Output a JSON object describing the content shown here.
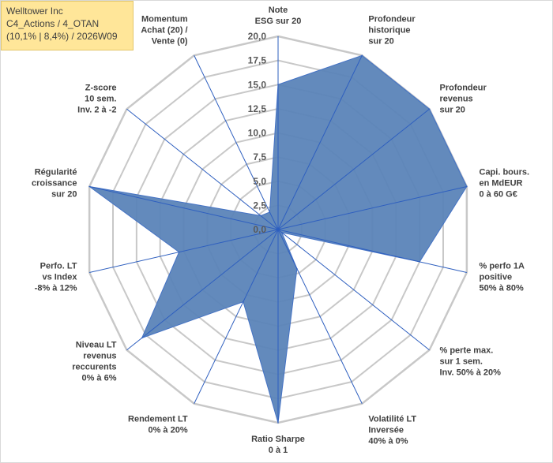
{
  "header": {
    "line1": "Welltower Inc",
    "line2": "C4_Actions / 4_OTAN",
    "line3": "(10,1% | 8,4%) / 2026W09"
  },
  "chart_data": {
    "type": "radar",
    "rmin": 0,
    "rmax": 20,
    "step": 2.5,
    "tick_labels": [
      "0,0",
      "2,5",
      "5,0",
      "7,5",
      "10,0",
      "12,5",
      "15,0",
      "17,5",
      "20,0"
    ],
    "axes": [
      {
        "label": [
          "Note",
          "ESG sur 20"
        ],
        "value": 15.0
      },
      {
        "label": [
          "Profondeur",
          "historique",
          "sur 20"
        ],
        "value": 20.0
      },
      {
        "label": [
          "Profondeur",
          "revenus",
          "sur 20"
        ],
        "value": 20.0
      },
      {
        "label": [
          "Capi. bours.",
          "en MdEUR",
          "0 à 60 G€"
        ],
        "value": 20.0
      },
      {
        "label": [
          "% perfo 1A",
          "positive",
          "50% à 80%"
        ],
        "value": 15.0
      },
      {
        "label": [
          "% perte max.",
          "sur 1 sem.",
          "Inv. 50% à 20%"
        ],
        "value": 0.5
      },
      {
        "label": [
          "Volatilité LT",
          "Inversée",
          "40% à 0%"
        ],
        "value": 4.5
      },
      {
        "label": [
          "Ratio Sharpe",
          "0 à 1"
        ],
        "value": 20.0
      },
      {
        "label": [
          "Rendement LT",
          "0% à 20%"
        ],
        "value": 8.3
      },
      {
        "label": [
          "Niveau LT",
          "revenus",
          "reccurents",
          "0% à 6%"
        ],
        "value": 18.0
      },
      {
        "label": [
          "Perfo. LT",
          "vs Index",
          "-8% à 12%"
        ],
        "value": 10.5
      },
      {
        "label": [
          "Régularité",
          "croissance",
          "sur 20"
        ],
        "value": 20.0
      },
      {
        "label": [
          "Z-score",
          "10 sem.",
          "Inv. 2 à -2"
        ],
        "value": 2.3
      },
      {
        "label": [
          "Momentum",
          "Achat (20) /",
          "Vente (0)"
        ],
        "value": 2.0
      }
    ],
    "colors": {
      "fill": "#5b84b8",
      "stroke": "#4472c4",
      "grid": "#c8c8c8",
      "spoke": "#2e5fbf"
    }
  }
}
